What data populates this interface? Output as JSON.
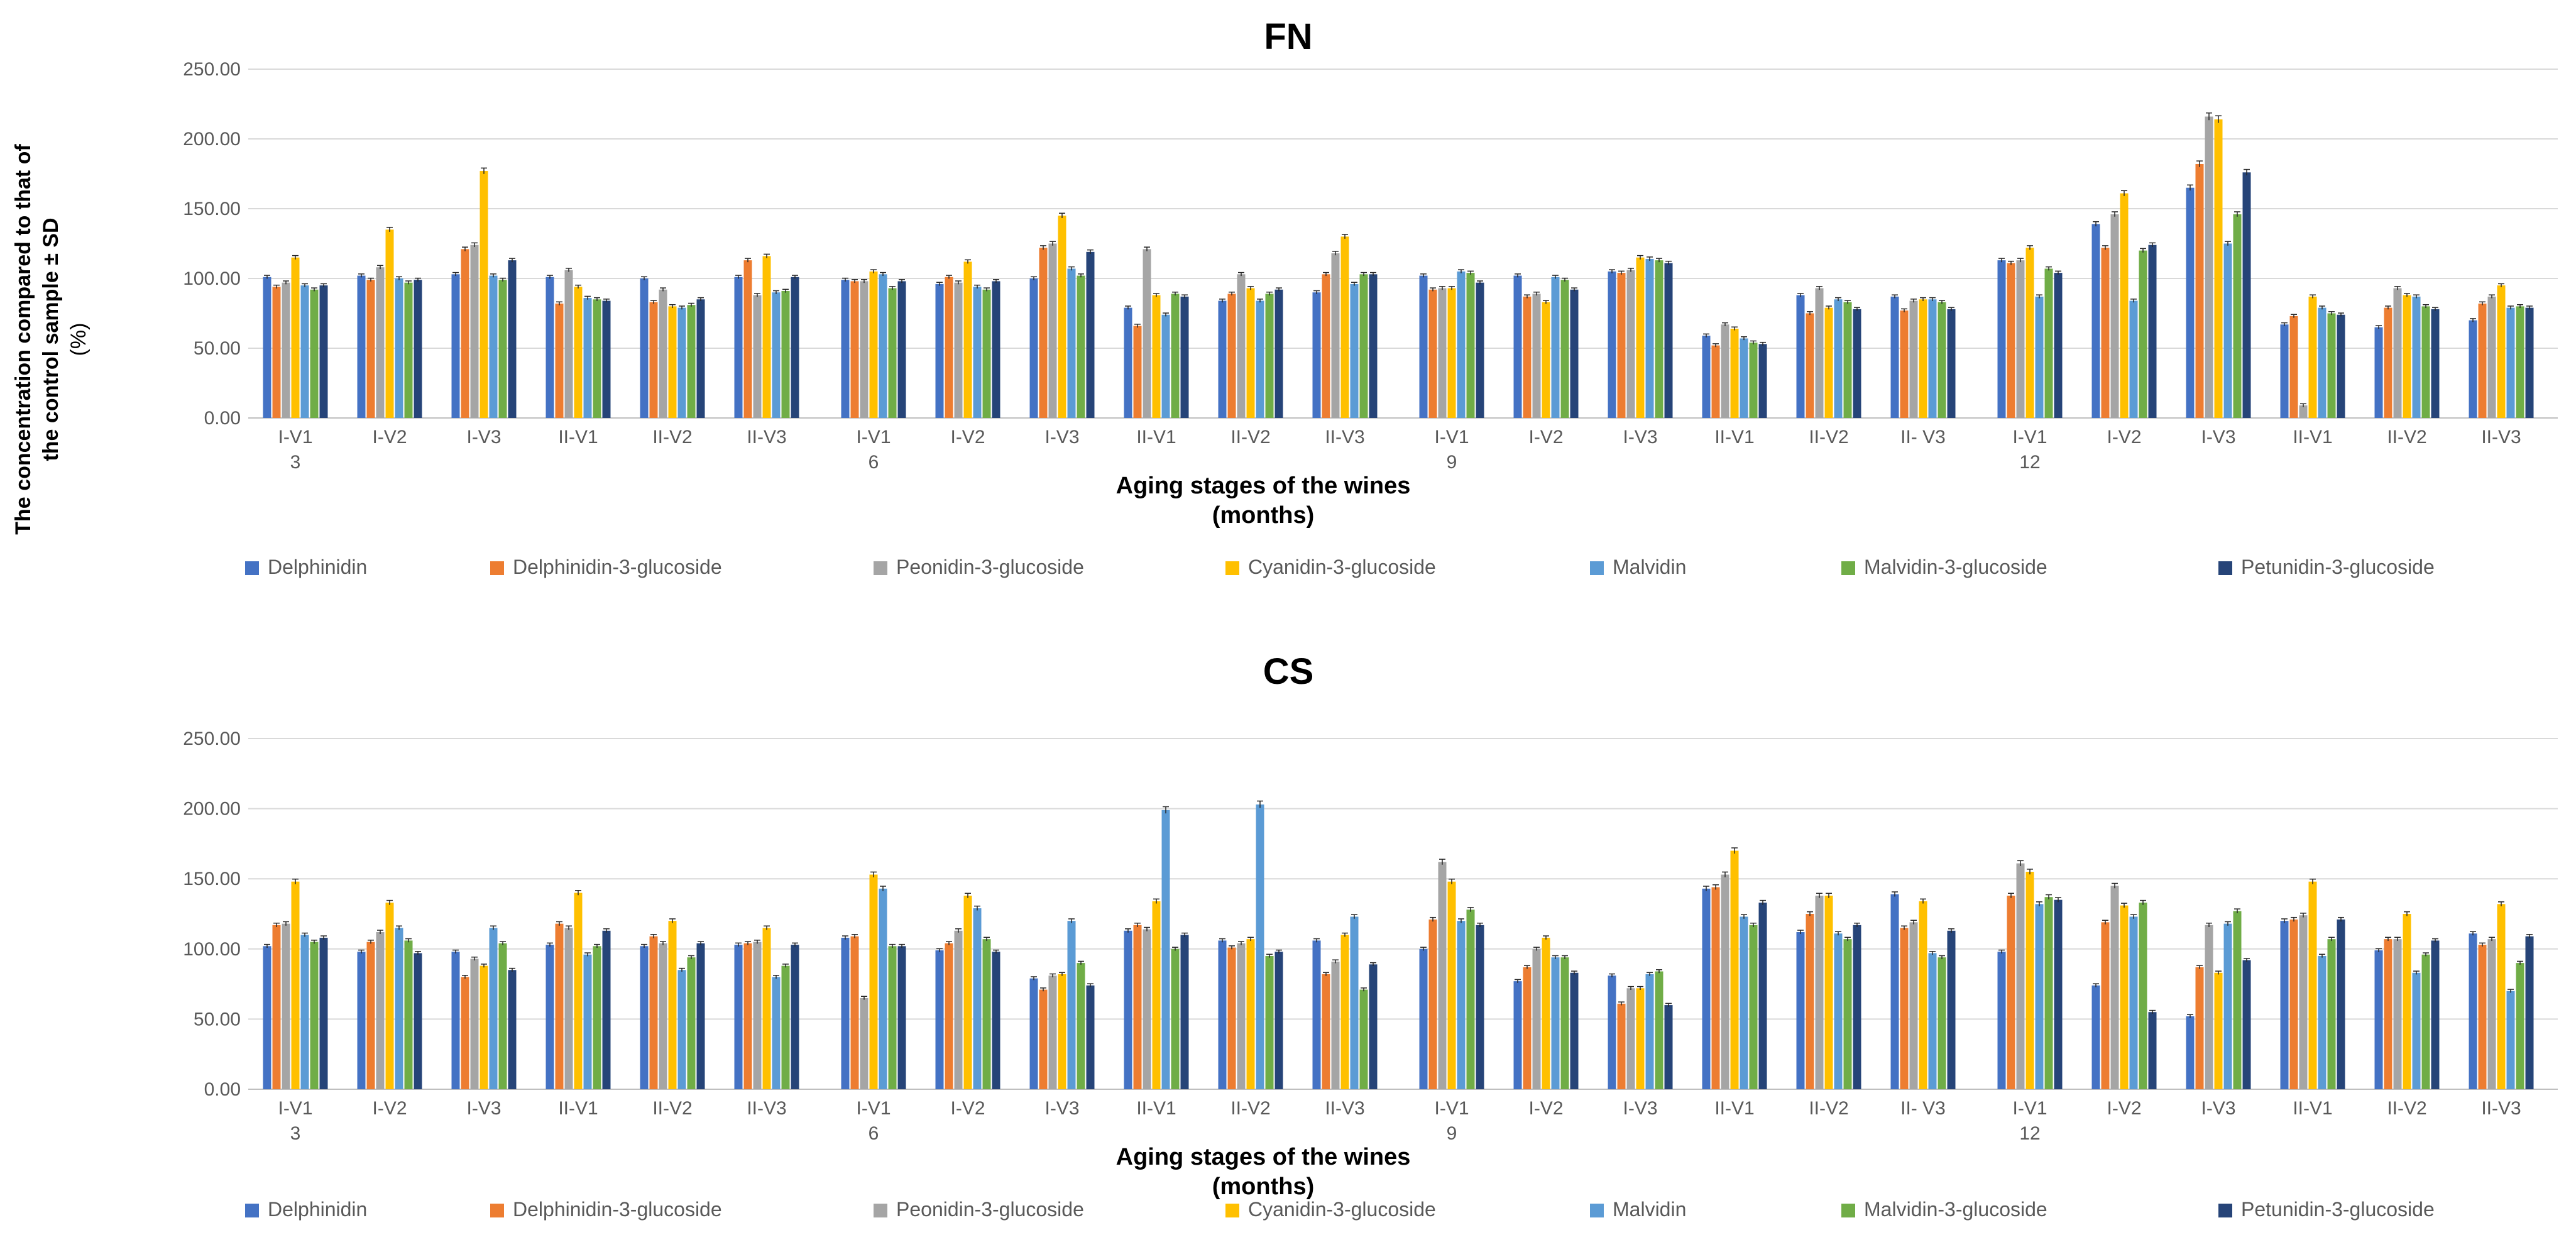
{
  "colors": {
    "Delphinidin": "#4472C4",
    "Delphinidin-3-glucoside": "#ED7D31",
    "Peonidin-3-glucoside": "#A5A5A5",
    "Cyanidin-3-glucoside": "#FFC000",
    "Malvidin": "#5B9BD5",
    "Malvidin-3-glucoside": "#70AD47",
    "Petunidin-3-glucoside": "#264478"
  },
  "ylabel_line1": "The concentration compared to that of",
  "ylabel_line2": "the control sample ± SD",
  "ylabel_line3": "(%)",
  "chart_data": [
    {
      "type": "bar",
      "title": "FN",
      "xlabel_line1": "Aging stages of the wines",
      "xlabel_line2": "(months)",
      "ylim": [
        0,
        250
      ],
      "ytick_labels": [
        "0.00",
        "50.00",
        "100.00",
        "150.00",
        "200.00",
        "250.00"
      ],
      "groups": [
        "3",
        "6",
        "9",
        "12"
      ],
      "categories": [
        [
          "I-V1",
          "I-V2",
          "I-V3",
          "II-V1",
          "II-V2",
          "II-V3"
        ],
        [
          "I-V1",
          "I-V2",
          "I-V3",
          "II-V1",
          "II-V2",
          "II-V3"
        ],
        [
          "I-V1",
          "I-V2",
          "I-V3",
          "II-V1",
          "II-V2",
          "II- V3"
        ],
        [
          "I-V1",
          "I-V2",
          "I-V3",
          "II-V1",
          "II-V2",
          "II-V3"
        ]
      ],
      "series": [
        {
          "name": "Delphinidin",
          "values": [
            [
              101,
              102,
              103,
              101,
              100,
              101
            ],
            [
              99,
              96,
              100,
              79,
              84,
              90
            ],
            [
              102,
              102,
              105,
              59,
              88,
              87
            ],
            [
              113,
              139,
              165,
              67,
              65,
              70
            ]
          ]
        },
        {
          "name": "Delphinidin-3-glucoside",
          "values": [
            [
              94,
              99,
              121,
              82,
              83,
              113
            ],
            [
              98,
              101,
              122,
              66,
              89,
              103
            ],
            [
              92,
              87,
              104,
              52,
              75,
              77
            ],
            [
              111,
              122,
              182,
              73,
              79,
              82
            ]
          ]
        },
        {
          "name": "Peonidin-3-glucoside",
          "values": [
            [
              97,
              108,
              124,
              106,
              92,
              88
            ],
            [
              98,
              97,
              125,
              121,
              103,
              118
            ],
            [
              93,
              89,
              106,
              67,
              93,
              84
            ],
            [
              113,
              146,
              216,
              9,
              93,
              87
            ]
          ]
        },
        {
          "name": "Cyanidin-3-glucoside",
          "values": [
            [
              115,
              135,
              177,
              94,
              80,
              116
            ],
            [
              105,
              112,
              145,
              88,
              93,
              130
            ],
            [
              93,
              83,
              115,
              64,
              79,
              85
            ],
            [
              122,
              161,
              214,
              87,
              88,
              95
            ]
          ]
        },
        {
          "name": "Malvidin",
          "values": [
            [
              95,
              100,
              102,
              86,
              79,
              90
            ],
            [
              103,
              94,
              107,
              74,
              84,
              96
            ],
            [
              105,
              101,
              114,
              57,
              85,
              85
            ],
            [
              87,
              84,
              125,
              79,
              87,
              79
            ]
          ]
        },
        {
          "name": "Malvidin-3-glucoside",
          "values": [
            [
              92,
              97,
              99,
              85,
              81,
              91
            ],
            [
              93,
              92,
              102,
              89,
              89,
              103
            ],
            [
              104,
              99,
              113,
              54,
              83,
              83
            ],
            [
              107,
              120,
              146,
              75,
              80,
              80
            ]
          ]
        },
        {
          "name": "Petunidin-3-glucoside",
          "values": [
            [
              95,
              99,
              113,
              84,
              85,
              101
            ],
            [
              98,
              98,
              119,
              87,
              92,
              103
            ],
            [
              97,
              92,
              111,
              53,
              78,
              78
            ],
            [
              104,
              124,
              176,
              74,
              78,
              79
            ]
          ]
        }
      ]
    },
    {
      "type": "bar",
      "title": "CS",
      "xlabel_line1": "Aging stages of the wines",
      "xlabel_line2": "(months)",
      "ylim": [
        0,
        250
      ],
      "ytick_labels": [
        "0.00",
        "50.00",
        "100.00",
        "150.00",
        "200.00",
        "250.00"
      ],
      "groups": [
        "3",
        "6",
        "9",
        "12"
      ],
      "categories": [
        [
          "I-V1",
          "I-V2",
          "I-V3",
          "II-V1",
          "II-V2",
          "II-V3"
        ],
        [
          "I-V1",
          "I-V2",
          "I-V3",
          "II-V1",
          "II-V2",
          "II-V3"
        ],
        [
          "I-V1",
          "I-V2",
          "I-V3",
          "II-V1",
          "II-V2",
          "II- V3"
        ],
        [
          "I-V1",
          "I-V2",
          "I-V3",
          "II-V1",
          "II-V2",
          "II-V3"
        ]
      ],
      "series": [
        {
          "name": "Delphinidin",
          "values": [
            [
              102,
              98,
              98,
              103,
              102,
              103
            ],
            [
              108,
              99,
              79,
              113,
              106,
              106
            ],
            [
              100,
              77,
              81,
              143,
              112,
              139
            ],
            [
              98,
              74,
              52,
              120,
              99,
              111
            ]
          ]
        },
        {
          "name": "Delphinidin-3-glucoside",
          "values": [
            [
              117,
              105,
              80,
              118,
              109,
              104
            ],
            [
              109,
              104,
              71,
              117,
              101,
              82
            ],
            [
              121,
              87,
              61,
              144,
              125,
              115
            ],
            [
              138,
              119,
              87,
              121,
              107,
              103
            ]
          ]
        },
        {
          "name": "Peonidin-3-glucoside",
          "values": [
            [
              118,
              112,
              93,
              115,
              104,
              105
            ],
            [
              65,
              113,
              81,
              114,
              104,
              91
            ],
            [
              162,
              100,
              72,
              153,
              138,
              119
            ],
            [
              161,
              145,
              117,
              124,
              107,
              107
            ]
          ]
        },
        {
          "name": "Cyanidin-3-glucoside",
          "values": [
            [
              148,
              133,
              88,
              140,
              120,
              115
            ],
            [
              153,
              138,
              82,
              134,
              107,
              110
            ],
            [
              148,
              108,
              72,
              170,
              138,
              134
            ],
            [
              155,
              131,
              83,
              148,
              125,
              132
            ]
          ]
        },
        {
          "name": "Malvidin",
          "values": [
            [
              110,
              115,
              115,
              96,
              85,
              80
            ],
            [
              143,
              129,
              120,
              199,
              203,
              123
            ],
            [
              120,
              94,
              82,
              123,
              111,
              97
            ],
            [
              132,
              123,
              118,
              95,
              83,
              70
            ]
          ]
        },
        {
          "name": "Malvidin-3-glucoside",
          "values": [
            [
              105,
              106,
              104,
              102,
              94,
              88
            ],
            [
              102,
              107,
              90,
              100,
              95,
              71
            ],
            [
              128,
              94,
              84,
              117,
              107,
              94
            ],
            [
              137,
              133,
              127,
              107,
              96,
              90
            ]
          ]
        },
        {
          "name": "Petunidin-3-glucoside",
          "values": [
            [
              108,
              97,
              85,
              113,
              104,
              103
            ],
            [
              102,
              98,
              74,
              110,
              98,
              89
            ],
            [
              117,
              83,
              60,
              133,
              117,
              113
            ],
            [
              135,
              55,
              92,
              121,
              106,
              109
            ]
          ]
        }
      ]
    }
  ]
}
